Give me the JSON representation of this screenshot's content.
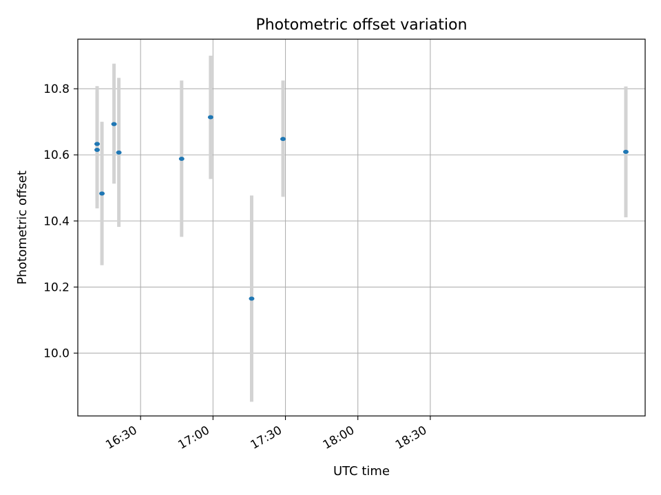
{
  "chart_data": {
    "type": "scatter",
    "title": "Photometric offset variation",
    "xlabel": "UTC time",
    "ylabel": "Photometric offset",
    "xlim": [
      "16:04",
      "19:59"
    ],
    "ylim": [
      9.81,
      10.95
    ],
    "x_ticks": [
      "16:30",
      "17:00",
      "17:30",
      "18:00",
      "18:30"
    ],
    "y_ticks": [
      "10.0",
      "10.2",
      "10.4",
      "10.6",
      "10.8"
    ],
    "grid": true,
    "marker_color": "#1f77b4",
    "errorbar_color": "#d3d3d3",
    "points": [
      {
        "x": "16:12",
        "y": 10.633,
        "yerr_low": 10.46,
        "yerr_high": 10.808
      },
      {
        "x": "16:12",
        "y": 10.615,
        "yerr_low": 10.438,
        "yerr_high": 10.792
      },
      {
        "x": "16:14",
        "y": 10.483,
        "yerr_low": 10.266,
        "yerr_high": 10.7
      },
      {
        "x": "16:19",
        "y": 10.693,
        "yerr_low": 10.513,
        "yerr_high": 10.876
      },
      {
        "x": "16:21",
        "y": 10.607,
        "yerr_low": 10.382,
        "yerr_high": 10.833
      },
      {
        "x": "16:47",
        "y": 10.588,
        "yerr_low": 10.352,
        "yerr_high": 10.825
      },
      {
        "x": "16:59",
        "y": 10.714,
        "yerr_low": 10.527,
        "yerr_high": 10.9
      },
      {
        "x": "17:16",
        "y": 10.165,
        "yerr_low": 9.853,
        "yerr_high": 10.477
      },
      {
        "x": "17:29",
        "y": 10.648,
        "yerr_low": 10.473,
        "yerr_high": 10.825
      },
      {
        "x": "19:51",
        "y": 10.609,
        "yerr_low": 10.411,
        "yerr_high": 10.807
      }
    ]
  }
}
